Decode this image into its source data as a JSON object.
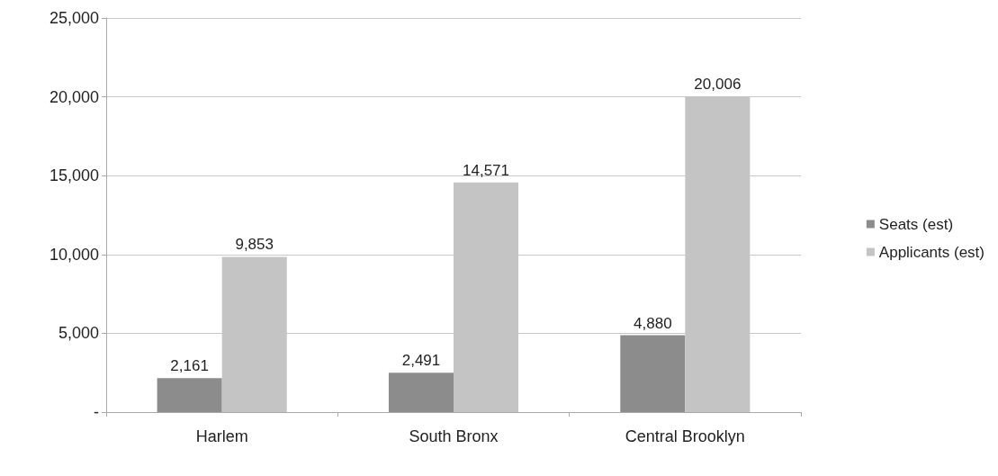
{
  "chart_data": {
    "type": "bar",
    "categories": [
      "Harlem",
      "South Bronx",
      "Central Brooklyn"
    ],
    "series": [
      {
        "name": "Seats (est)",
        "color": "#8c8c8c",
        "values": [
          2161,
          2491,
          4880
        ],
        "value_labels": [
          "2,161",
          "2,491",
          "4,880"
        ]
      },
      {
        "name": "Applicants (est)",
        "color": "#c4c4c4",
        "values": [
          9853,
          14571,
          20006
        ],
        "value_labels": [
          "9,853",
          "14,571",
          "20,006"
        ]
      }
    ],
    "ylim": [
      0,
      25000
    ],
    "yticks": [
      {
        "value": 0,
        "label": "-"
      },
      {
        "value": 5000,
        "label": "5,000"
      },
      {
        "value": 10000,
        "label": "10,000"
      },
      {
        "value": 15000,
        "label": "15,000"
      },
      {
        "value": 20000,
        "label": "20,000"
      },
      {
        "value": 25000,
        "label": "25,000"
      }
    ],
    "grid": "y",
    "legend": "right"
  }
}
